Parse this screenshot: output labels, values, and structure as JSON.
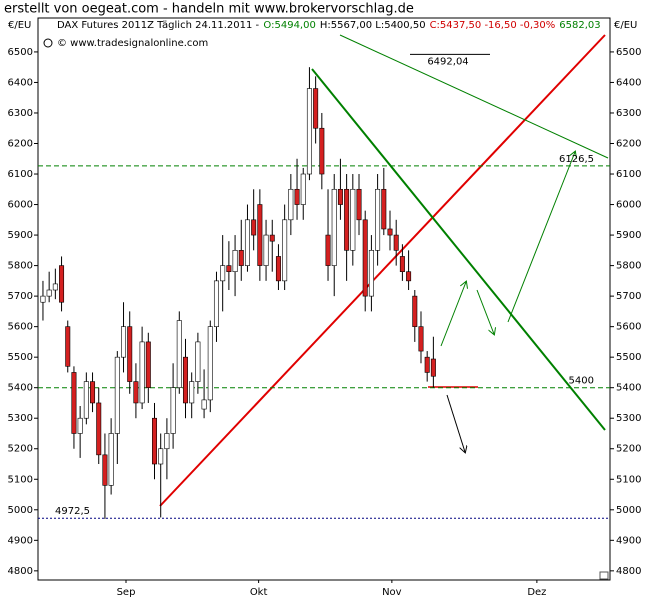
{
  "chart_data": {
    "type": "candlestick",
    "title": "erstellt von oegeat.com - handeln mit www.brokervorschlag.de",
    "legend_parts": [
      {
        "text": "DAX Futures 2011Z Täglich  24.11.2011 -",
        "color": "#000000"
      },
      {
        "text": "O:5494,00",
        "color": "#008000"
      },
      {
        "text": "H:5567,00 L:5400,50",
        "color": "#000000"
      },
      {
        "text": "C:5437,50 -16,50 -0,30%",
        "color": "#d00000"
      },
      {
        "text": "6582,03",
        "color": "#008000"
      }
    ],
    "source": "© www.tradesignalonline.com",
    "y_label": "€/EU",
    "y2_label": "€/EU",
    "xlim": [
      -0.8,
      91.5
    ],
    "xticks": [
      {
        "value": 13.4,
        "label": "Sep"
      },
      {
        "value": 34.8,
        "label": "Okt"
      },
      {
        "value": 56.3,
        "label": "Nov"
      },
      {
        "value": 79.7,
        "label": "Dez"
      }
    ],
    "ylim": [
      4770,
      6562
    ],
    "yticks": [
      4800,
      4900,
      5000,
      5100,
      5200,
      5300,
      5400,
      5500,
      5600,
      5700,
      5800,
      5900,
      6000,
      6100,
      6200,
      6300,
      6400,
      6500
    ],
    "up_color": "#ffffff",
    "down_color": "#d42020",
    "x": [
      0,
      1,
      2,
      3,
      4,
      5,
      6,
      7,
      8,
      9,
      10,
      11,
      12,
      13,
      14,
      15,
      16,
      17,
      18,
      19,
      20,
      21,
      22,
      23,
      24,
      25,
      26,
      27,
      28,
      29,
      30,
      31,
      32,
      33,
      34,
      35,
      36,
      37,
      38,
      39,
      40,
      41,
      42,
      43,
      44,
      45,
      46,
      47,
      48,
      49,
      50,
      51,
      52,
      53,
      54,
      55,
      56,
      57,
      58,
      59,
      60,
      61,
      62,
      63
    ],
    "open": [
      5680,
      5700,
      5720,
      5800,
      5600,
      5450,
      5250,
      5300,
      5420,
      5350,
      5180,
      5080,
      5250,
      5500,
      5600,
      5420,
      5350,
      5550,
      5300,
      5150,
      5200,
      5250,
      5400,
      5500,
      5350,
      5420,
      5330,
      5360,
      5600,
      5750,
      5800,
      5780,
      5850,
      5800,
      5950,
      6000,
      5800,
      5900,
      5830,
      5750,
      5950,
      6050,
      6000,
      6100,
      6380,
      6250,
      5900,
      5800,
      6050,
      6050,
      5850,
      6050,
      5950,
      5700,
      5850,
      6050,
      5920,
      5900,
      5830,
      5780,
      5700,
      5600,
      5500,
      5494
    ],
    "high": [
      5750,
      5780,
      5790,
      5830,
      5620,
      5470,
      5340,
      5450,
      5450,
      5400,
      5250,
      5300,
      5520,
      5680,
      5650,
      5480,
      5600,
      5580,
      5350,
      5250,
      5300,
      5480,
      5650,
      5560,
      5450,
      5580,
      5460,
      5620,
      5780,
      5900,
      5880,
      5900,
      5950,
      6000,
      6050,
      6050,
      5950,
      5950,
      5870,
      6000,
      6100,
      6150,
      6120,
      6450,
      6420,
      6300,
      6050,
      6100,
      6150,
      6100,
      6100,
      6100,
      5980,
      5900,
      6100,
      6120,
      5980,
      5950,
      5870,
      5850,
      5720,
      5650,
      5520,
      5567
    ],
    "low": [
      5620,
      5680,
      5690,
      5650,
      5450,
      5200,
      5170,
      5280,
      5320,
      5150,
      4970,
      5050,
      5150,
      5450,
      5380,
      5300,
      5330,
      5350,
      5100,
      4975,
      5100,
      5200,
      5380,
      5300,
      5300,
      5380,
      5300,
      5320,
      5550,
      5650,
      5720,
      5700,
      5750,
      5780,
      5850,
      5750,
      5750,
      5780,
      5720,
      5720,
      5900,
      5950,
      5950,
      6080,
      6200,
      6050,
      5750,
      5700,
      5950,
      5750,
      5800,
      5900,
      5650,
      5650,
      5800,
      5900,
      5850,
      5800,
      5750,
      5720,
      5550,
      5480,
      5420,
      5400.5
    ],
    "close": [
      5700,
      5720,
      5740,
      5680,
      5470,
      5250,
      5300,
      5420,
      5350,
      5180,
      5080,
      5250,
      5500,
      5600,
      5420,
      5350,
      5550,
      5400,
      5150,
      5200,
      5250,
      5400,
      5620,
      5350,
      5420,
      5550,
      5360,
      5600,
      5750,
      5800,
      5780,
      5850,
      5800,
      5950,
      5900,
      5800,
      5900,
      5880,
      5750,
      5950,
      6050,
      6000,
      6100,
      6380,
      6250,
      6100,
      5800,
      6050,
      6000,
      5850,
      6050,
      5950,
      5700,
      5850,
      6050,
      5920,
      5900,
      5850,
      5780,
      5750,
      5600,
      5520,
      5450,
      5437.5
    ],
    "levels": [
      {
        "value": 6126.5,
        "label": "6126,5",
        "color": "#008000"
      },
      {
        "value": 5400,
        "label": "5400",
        "color": "#008000"
      },
      {
        "value": 4972.5,
        "label": "4972,5",
        "color": "#000080"
      },
      {
        "value": 6492.04,
        "label": "6492,04",
        "color": "#000000"
      }
    ]
  }
}
